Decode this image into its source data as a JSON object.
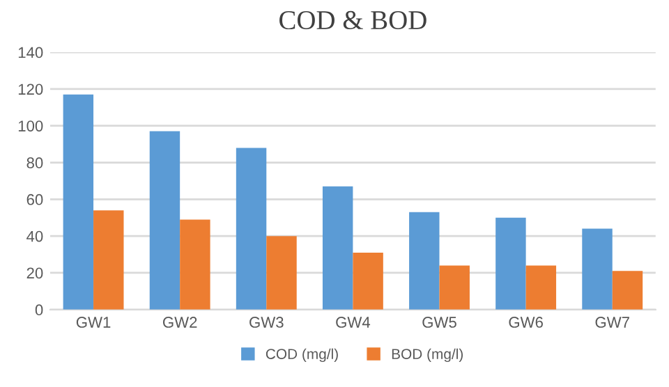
{
  "chart_data": {
    "type": "bar",
    "title": "COD & BOD",
    "categories": [
      "GW1",
      "GW2",
      "GW3",
      "GW4",
      "GW5",
      "GW6",
      "GW7"
    ],
    "series": [
      {
        "name": "COD (mg/l)",
        "color": "#5b9bd5",
        "values": [
          117,
          97,
          88,
          67,
          53,
          50,
          44
        ]
      },
      {
        "name": "BOD (mg/l)",
        "color": "#ed7d31",
        "values": [
          54,
          49,
          40,
          31,
          24,
          24,
          21
        ]
      }
    ],
    "ylim": [
      0,
      140
    ],
    "yticks": [
      0,
      20,
      40,
      60,
      80,
      100,
      120,
      140
    ],
    "grid": "y",
    "legend": "bottom"
  }
}
